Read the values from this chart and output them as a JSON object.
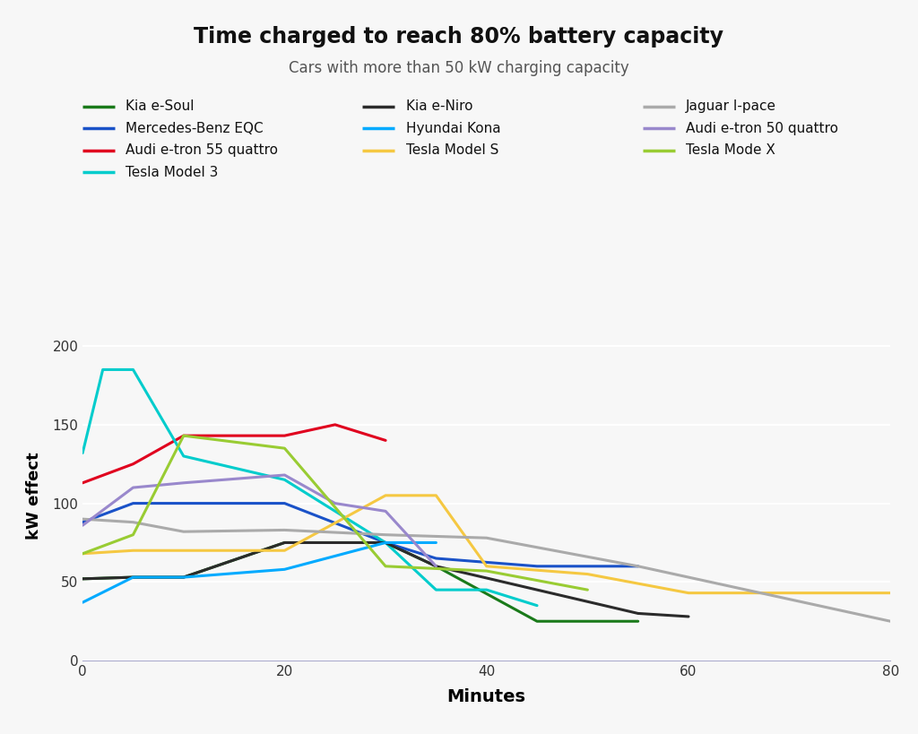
{
  "title": "Time charged to reach 80% battery capacity",
  "subtitle": "Cars with more than 50 kW charging capacity",
  "xlabel": "Minutes",
  "ylabel": "kW effect",
  "xlim": [
    0,
    80
  ],
  "ylim": [
    0,
    210
  ],
  "yticks": [
    0,
    50,
    100,
    150,
    200
  ],
  "xticks": [
    0,
    20,
    40,
    60,
    80
  ],
  "background_color": "#f7f7f7",
  "series": [
    {
      "name": "Kia e-Soul",
      "color": "#1a7a1a",
      "linewidth": 2.2,
      "x": [
        0,
        5,
        10,
        20,
        30,
        35,
        45,
        55
      ],
      "y": [
        52,
        53,
        53,
        75,
        75,
        60,
        25,
        25
      ]
    },
    {
      "name": "Mercedes-Benz EQC",
      "color": "#1a52c8",
      "linewidth": 2.2,
      "x": [
        0,
        5,
        10,
        20,
        30,
        35,
        45,
        55
      ],
      "y": [
        88,
        100,
        100,
        100,
        75,
        65,
        60,
        60
      ]
    },
    {
      "name": "Audi e-tron 55 quattro",
      "color": "#e0001e",
      "linewidth": 2.2,
      "x": [
        0,
        5,
        10,
        20,
        25,
        30
      ],
      "y": [
        113,
        125,
        143,
        143,
        150,
        140
      ]
    },
    {
      "name": "Tesla Model 3",
      "color": "#00cccc",
      "linewidth": 2.2,
      "x": [
        0,
        2,
        5,
        10,
        20,
        30,
        35,
        40,
        45
      ],
      "y": [
        132,
        185,
        185,
        130,
        115,
        75,
        45,
        45,
        35
      ]
    },
    {
      "name": "Kia e-Niro",
      "color": "#2b2b2b",
      "linewidth": 2.2,
      "x": [
        0,
        5,
        10,
        20,
        30,
        35,
        55,
        60
      ],
      "y": [
        52,
        53,
        53,
        75,
        75,
        60,
        30,
        28
      ]
    },
    {
      "name": "Hyundai Kona",
      "color": "#00aaff",
      "linewidth": 2.2,
      "x": [
        0,
        5,
        10,
        20,
        30,
        35
      ],
      "y": [
        37,
        53,
        53,
        58,
        75,
        75
      ]
    },
    {
      "name": "Tesla Model S",
      "color": "#f5c842",
      "linewidth": 2.2,
      "x": [
        0,
        5,
        10,
        20,
        30,
        35,
        40,
        50,
        60,
        80
      ],
      "y": [
        68,
        70,
        70,
        70,
        105,
        105,
        60,
        55,
        43,
        43
      ]
    },
    {
      "name": "Jaguar I-pace",
      "color": "#aaaaaa",
      "linewidth": 2.2,
      "x": [
        0,
        5,
        10,
        20,
        30,
        40,
        55,
        80
      ],
      "y": [
        90,
        88,
        82,
        83,
        80,
        78,
        60,
        25
      ]
    },
    {
      "name": "Audi e-tron 50 quattro",
      "color": "#9988cc",
      "linewidth": 2.2,
      "x": [
        0,
        5,
        10,
        20,
        25,
        30,
        35
      ],
      "y": [
        86,
        110,
        113,
        118,
        100,
        95,
        60
      ]
    },
    {
      "name": "Tesla Mode X",
      "color": "#99cc33",
      "linewidth": 2.2,
      "x": [
        0,
        5,
        10,
        20,
        30,
        40,
        50
      ],
      "y": [
        68,
        80,
        143,
        135,
        60,
        57,
        45
      ]
    }
  ],
  "legend_order": [
    [
      "Kia e-Soul",
      "#1a7a1a"
    ],
    [
      "Kia e-Niro",
      "#2b2b2b"
    ],
    [
      "Jaguar I-pace",
      "#aaaaaa"
    ],
    [
      "Mercedes-Benz EQC",
      "#1a52c8"
    ],
    [
      "Hyundai Kona",
      "#00aaff"
    ],
    [
      "Audi e-tron 50 quattro",
      "#9988cc"
    ],
    [
      "Audi e-tron 55 quattro",
      "#e0001e"
    ],
    [
      "Tesla Model S",
      "#f5c842"
    ],
    [
      "Tesla Mode X",
      "#99cc33"
    ],
    [
      "Tesla Model 3",
      "#00cccc"
    ]
  ]
}
